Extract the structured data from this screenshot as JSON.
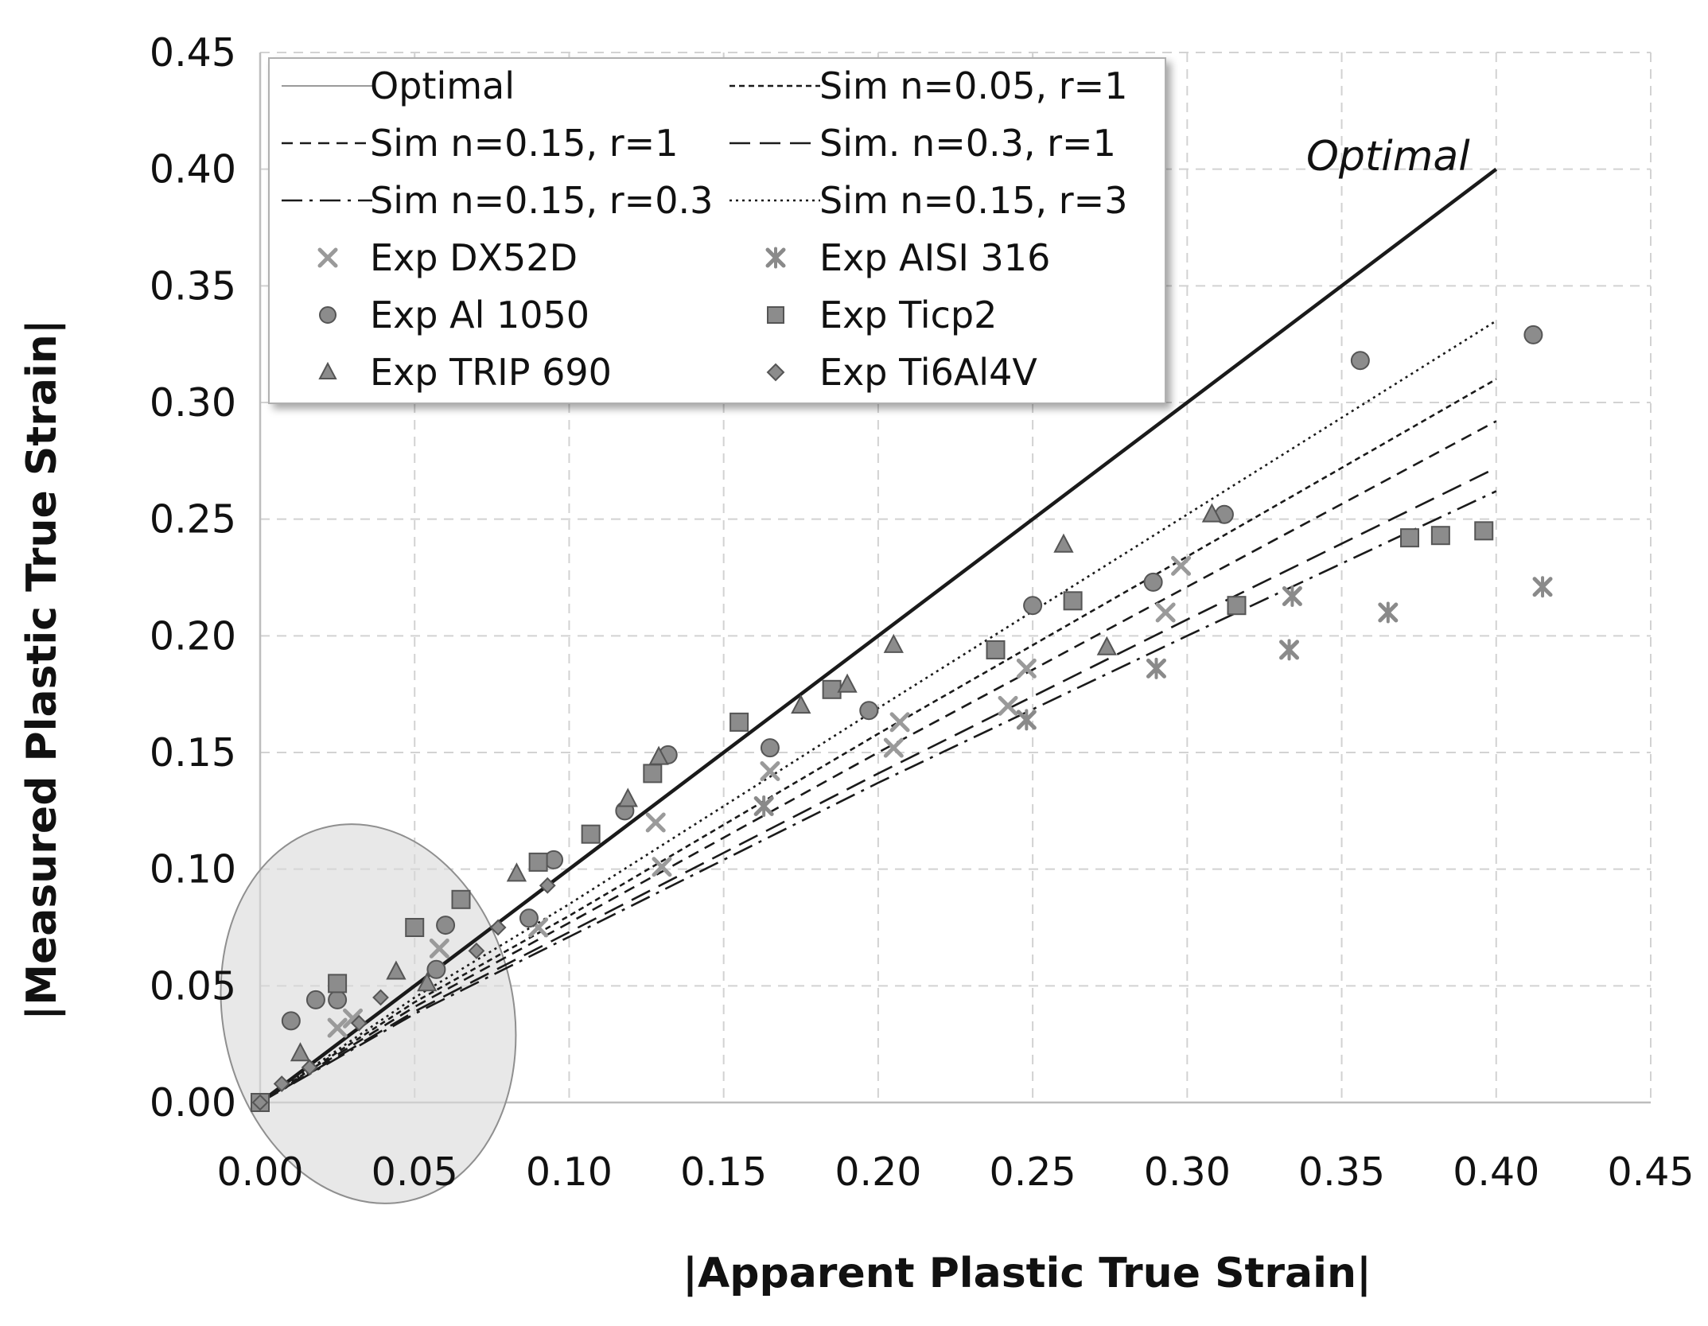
{
  "chart_data": {
    "type": "scatter",
    "title": "",
    "xlabel": "|Apparent Plastic True Strain|",
    "ylabel": "|Measured Plastic True Strain|",
    "xlim": [
      0,
      0.45
    ],
    "ylim": [
      0,
      0.45
    ],
    "x_ticks": [
      "0.00",
      "0.05",
      "0.10",
      "0.15",
      "0.20",
      "0.25",
      "0.30",
      "0.35",
      "0.40",
      "0.45"
    ],
    "y_ticks": [
      "0.00",
      "0.05",
      "0.10",
      "0.15",
      "0.20",
      "0.25",
      "0.30",
      "0.35",
      "0.40",
      "0.45"
    ],
    "grid": true,
    "legend_position": "top-left",
    "annotations": [
      {
        "text": "Optimal",
        "x": 0.365,
        "y": 0.405
      }
    ],
    "highlight_ellipse": {
      "cx": 0.035,
      "cy": 0.038,
      "rx": 0.047,
      "ry": 0.082,
      "angle_deg": -12
    },
    "lines": [
      {
        "name": "Optimal",
        "style": "solid",
        "x": [
          0,
          0.4
        ],
        "y": [
          0,
          0.4
        ]
      },
      {
        "name": "Sim n=0.05, r=1",
        "style": "dash-fine",
        "x": [
          0,
          0.05,
          0.1,
          0.2,
          0.3,
          0.4
        ],
        "y": [
          0,
          0.043,
          0.08,
          0.158,
          0.234,
          0.31
        ]
      },
      {
        "name": "Sim n=0.15, r=1",
        "style": "dash-medium",
        "x": [
          0,
          0.05,
          0.1,
          0.2,
          0.3,
          0.4
        ],
        "y": [
          0,
          0.041,
          0.077,
          0.15,
          0.221,
          0.292
        ]
      },
      {
        "name": "Sim. n=0.3, r=1",
        "style": "dash-long",
        "x": [
          0,
          0.05,
          0.1,
          0.2,
          0.3,
          0.4
        ],
        "y": [
          0,
          0.039,
          0.073,
          0.141,
          0.207,
          0.272
        ]
      },
      {
        "name": "Sim n=0.15, r=0.3",
        "style": "dash-dot",
        "x": [
          0,
          0.05,
          0.1,
          0.2,
          0.3,
          0.4
        ],
        "y": [
          0,
          0.038,
          0.071,
          0.137,
          0.2,
          0.262
        ]
      },
      {
        "name": "Sim n=0.15, r=3",
        "style": "dotted",
        "x": [
          0,
          0.05,
          0.1,
          0.2,
          0.3,
          0.4
        ],
        "y": [
          0,
          0.045,
          0.085,
          0.169,
          0.252,
          0.335
        ]
      }
    ],
    "series": [
      {
        "name": "Exp DX52D",
        "marker": "x",
        "x": [
          0.025,
          0.03,
          0.058,
          0.09,
          0.128,
          0.13,
          0.165,
          0.205,
          0.207,
          0.242,
          0.248,
          0.293,
          0.298
        ],
        "y": [
          0.032,
          0.036,
          0.066,
          0.075,
          0.12,
          0.101,
          0.142,
          0.152,
          0.163,
          0.17,
          0.186,
          0.21,
          0.23
        ]
      },
      {
        "name": "Exp AISI 316",
        "marker": "asterisk",
        "x": [
          0.163,
          0.248,
          0.29,
          0.333,
          0.334,
          0.365,
          0.415
        ],
        "y": [
          0.127,
          0.164,
          0.186,
          0.194,
          0.217,
          0.21,
          0.221
        ]
      },
      {
        "name": "Exp Al 1050",
        "marker": "circle",
        "x": [
          0.0,
          0.01,
          0.018,
          0.025,
          0.057,
          0.06,
          0.087,
          0.095,
          0.118,
          0.132,
          0.165,
          0.197,
          0.25,
          0.289,
          0.312,
          0.356,
          0.412
        ],
        "y": [
          0.0,
          0.035,
          0.044,
          0.044,
          0.057,
          0.076,
          0.079,
          0.104,
          0.125,
          0.149,
          0.152,
          0.168,
          0.213,
          0.223,
          0.252,
          0.318,
          0.329
        ]
      },
      {
        "name": "Exp Ticp2",
        "marker": "square",
        "x": [
          0.0,
          0.025,
          0.05,
          0.065,
          0.09,
          0.107,
          0.127,
          0.155,
          0.185,
          0.238,
          0.263,
          0.316,
          0.372,
          0.382,
          0.396
        ],
        "y": [
          0.0,
          0.051,
          0.075,
          0.087,
          0.103,
          0.115,
          0.141,
          0.163,
          0.177,
          0.194,
          0.215,
          0.213,
          0.242,
          0.243,
          0.245
        ]
      },
      {
        "name": "Exp TRIP 690",
        "marker": "triangle",
        "x": [
          0.013,
          0.044,
          0.054,
          0.083,
          0.119,
          0.129,
          0.175,
          0.19,
          0.205,
          0.26,
          0.274,
          0.308
        ],
        "y": [
          0.021,
          0.056,
          0.051,
          0.098,
          0.13,
          0.148,
          0.17,
          0.179,
          0.196,
          0.239,
          0.195,
          0.252
        ]
      },
      {
        "name": "Exp Ti6Al4V",
        "marker": "diamond",
        "x": [
          0.0,
          0.007,
          0.016,
          0.032,
          0.039,
          0.07,
          0.077,
          0.093
        ],
        "y": [
          0.0,
          0.008,
          0.015,
          0.034,
          0.045,
          0.065,
          0.075,
          0.093
        ]
      }
    ],
    "legend": [
      {
        "label": "Optimal",
        "kind": "line",
        "style": "solid-thin",
        "ref": "Optimal"
      },
      {
        "label": "Sim n=0.05, r=1",
        "kind": "line",
        "style": "dash-fine",
        "ref": "Sim n=0.05, r=1"
      },
      {
        "label": "Sim n=0.15, r=1",
        "kind": "line",
        "style": "dash-medium",
        "ref": "Sim n=0.15, r=1"
      },
      {
        "label": "Sim. n=0.3, r=1",
        "kind": "line",
        "style": "dash-long",
        "ref": "Sim. n=0.3, r=1"
      },
      {
        "label": "Sim n=0.15, r=0.3",
        "kind": "line",
        "style": "dash-dot",
        "ref": "Sim n=0.15, r=0.3"
      },
      {
        "label": "Sim n=0.15, r=3",
        "kind": "line",
        "style": "dotted",
        "ref": "Sim n=0.15, r=3"
      },
      {
        "label": "Exp DX52D",
        "kind": "marker",
        "marker": "x"
      },
      {
        "label": "Exp AISI 316",
        "kind": "marker",
        "marker": "asterisk"
      },
      {
        "label": "Exp Al 1050",
        "kind": "marker",
        "marker": "circle"
      },
      {
        "label": "Exp Ticp2",
        "kind": "marker",
        "marker": "square"
      },
      {
        "label": "Exp TRIP 690",
        "kind": "marker",
        "marker": "triangle"
      },
      {
        "label": "Exp Ti6Al4V",
        "kind": "marker",
        "marker": "diamond"
      }
    ]
  }
}
